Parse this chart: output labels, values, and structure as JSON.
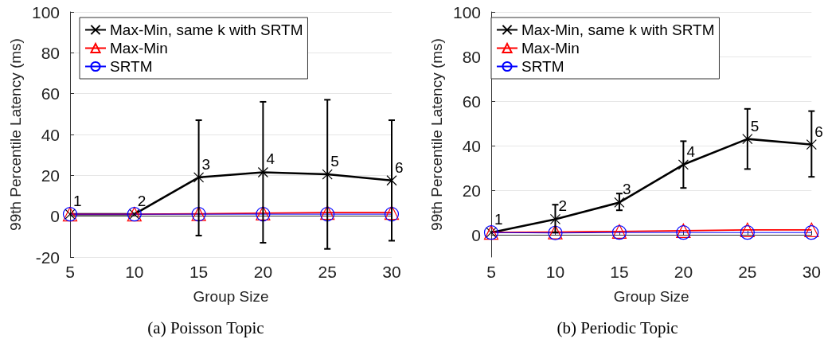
{
  "chart_data": [
    {
      "type": "line",
      "xlabel": "Group Size",
      "ylabel": "99th Percentile Latency (ms)",
      "x": [
        5,
        10,
        15,
        20,
        25,
        30
      ],
      "xlim": [
        5,
        30
      ],
      "xticks": [
        5,
        10,
        15,
        20,
        25,
        30
      ],
      "ylim": [
        -20,
        100
      ],
      "yticks": [
        -20,
        0,
        20,
        40,
        60,
        80,
        100
      ],
      "grid": "y",
      "legend": "top left",
      "line_style": "solid",
      "series": [
        {
          "name": "Max-Min, same k with SRTM",
          "color": "#000000",
          "marker": "cross",
          "values": [
            1,
            1,
            19,
            21.5,
            20.5,
            17.5
          ],
          "errors": [
            null,
            null,
            [
              -9.5,
              47
            ],
            [
              -13,
              56
            ],
            [
              -16,
              57
            ],
            [
              -12,
              47
            ]
          ]
        },
        {
          "name": "Max-Min",
          "color": "#ff0000",
          "marker": "triangle",
          "values": [
            1,
            1,
            1.2,
            1.5,
            1.8,
            1.8
          ]
        },
        {
          "name": "SRTM",
          "color": "#0000ff",
          "marker": "circle",
          "values": [
            1,
            1,
            1,
            1,
            1,
            1
          ]
        }
      ],
      "annotations": [
        {
          "text": "1",
          "x": 5,
          "y": 1
        },
        {
          "text": "2",
          "x": 10,
          "y": 1
        },
        {
          "text": "3",
          "x": 15,
          "y": 19
        },
        {
          "text": "4",
          "x": 20,
          "y": 21.5
        },
        {
          "text": "5",
          "x": 25,
          "y": 20.5
        },
        {
          "text": "6",
          "x": 30,
          "y": 17.5
        },
        "(a) Poisson Topic"
      ]
    },
    {
      "type": "line",
      "xlabel": "Group Size",
      "ylabel": "99th Percentile Latency (ms)",
      "x": [
        5,
        10,
        15,
        20,
        25,
        30
      ],
      "xlim": [
        5,
        30
      ],
      "xticks": [
        5,
        10,
        15,
        20,
        25,
        30
      ],
      "ylim": [
        -10,
        100
      ],
      "yticks": [
        0,
        20,
        40,
        60,
        80,
        100
      ],
      "grid": "y",
      "legend": "top left",
      "line_style": "solid",
      "series": [
        {
          "name": "Max-Min, same k with SRTM",
          "color": "#000000",
          "marker": "cross",
          "values": [
            1,
            7,
            14.5,
            31.5,
            43,
            40.5
          ],
          "errors": [
            null,
            [
              1,
              13.5
            ],
            [
              11,
              18.5
            ],
            [
              21,
              42
            ],
            [
              29.5,
              56.5
            ],
            [
              26,
              55.5
            ]
          ]
        },
        {
          "name": "Max-Min",
          "color": "#ff0000",
          "marker": "triangle",
          "values": [
            1,
            1.2,
            1.5,
            1.8,
            2.2,
            2.2
          ]
        },
        {
          "name": "SRTM",
          "color": "#0000ff",
          "marker": "circle",
          "values": [
            1,
            0.8,
            1,
            1,
            1,
            1
          ]
        }
      ],
      "annotations": [
        {
          "text": "1",
          "x": 5,
          "y": 1
        },
        {
          "text": "2",
          "x": 10,
          "y": 7
        },
        {
          "text": "3",
          "x": 15,
          "y": 14.5
        },
        {
          "text": "4",
          "x": 20,
          "y": 31.5
        },
        {
          "text": "5",
          "x": 25,
          "y": 43
        },
        {
          "text": "6",
          "x": 30,
          "y": 40.5
        },
        "(b) Periodic Topic"
      ]
    }
  ]
}
